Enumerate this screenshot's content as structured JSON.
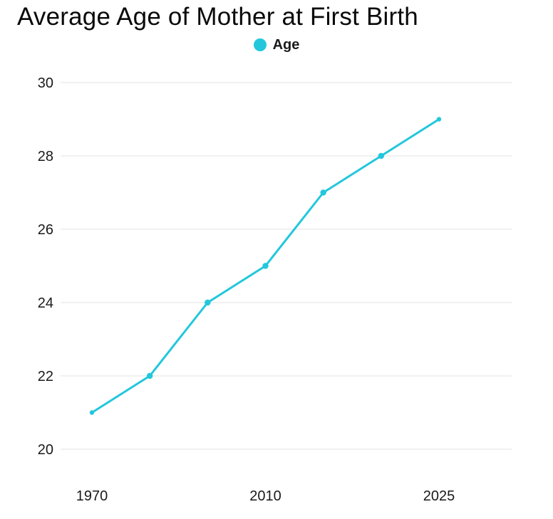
{
  "chart_data": {
    "type": "line",
    "title": "Average Age of Mother at First Birth",
    "series": [
      {
        "name": "Age",
        "color": "#22c7dc",
        "values": [
          21,
          22,
          24,
          25,
          27,
          28,
          29
        ]
      }
    ],
    "num_points": 7,
    "x_tick_labels": [
      {
        "index": 0,
        "label": "1970"
      },
      {
        "index": 3,
        "label": "2010"
      },
      {
        "index": 6,
        "label": "2025"
      }
    ],
    "y_ticks": [
      20,
      22,
      24,
      26,
      28,
      30
    ],
    "ylim": [
      20,
      30
    ],
    "grid": "horizontal",
    "legend_position": "top-center",
    "colors": {
      "line": "#22c7dc",
      "marker": "#22c7dc",
      "grid": "#e3e3e3",
      "tick_text": "#1a1a1a",
      "title_text": "#0a0a0a",
      "background": "#ffffff"
    }
  }
}
